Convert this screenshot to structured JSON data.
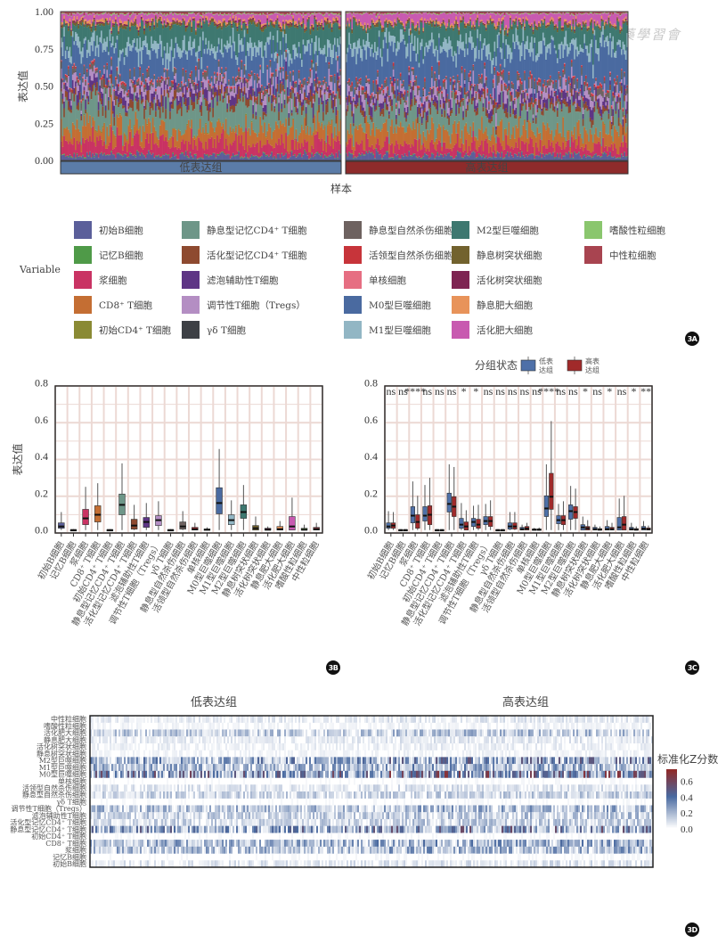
{
  "watermark": "川藥學習會",
  "badges": {
    "a": "3A",
    "b": "3B",
    "c": "3C",
    "d": "3D"
  },
  "cell_types": [
    {
      "name": "初始B细胞",
      "color": "#5b5f9a"
    },
    {
      "name": "记忆B细胞",
      "color": "#4f9a48"
    },
    {
      "name": "浆细胞",
      "color": "#c93363"
    },
    {
      "name": "CD8⁺ T细胞",
      "color": "#c46e33"
    },
    {
      "name": "初始CD4⁺ T细胞",
      "color": "#8a8a34"
    },
    {
      "name": "静息型记忆CD4⁺ T细胞",
      "color": "#6e9688"
    },
    {
      "name": "活化型记忆CD4⁺ T细胞",
      "color": "#8e4a30"
    },
    {
      "name": "滤泡辅助性T细胞",
      "color": "#5e3585"
    },
    {
      "name": "调节性T细胞（Tregs）",
      "color": "#b48ec3"
    },
    {
      "name": "γδ T细胞",
      "color": "#3d4045"
    },
    {
      "name": "静息型自然杀伤细胞",
      "color": "#6e6260"
    },
    {
      "name": "活领型自然杀伤细胞",
      "color": "#c7343a"
    },
    {
      "name": "单核细胞",
      "color": "#e66e82"
    },
    {
      "name": "M0型巨噬细胞",
      "color": "#4a6aa0"
    },
    {
      "name": "M1型巨噬细胞",
      "color": "#92b6c4"
    },
    {
      "name": "M2型巨噬细胞",
      "color": "#3e7870"
    },
    {
      "name": "静息树突状细胞",
      "color": "#72622e"
    },
    {
      "name": "活化树突状细胞",
      "color": "#7e2452"
    },
    {
      "name": "静息肥大细胞",
      "color": "#e8935a"
    },
    {
      "name": "活化肥大细胞",
      "color": "#c85ab0"
    },
    {
      "name": "嗜酸性粒细胞",
      "color": "#8ac66e"
    },
    {
      "name": "中性粒细胞",
      "color": "#a84450"
    }
  ],
  "chart_data": [
    {
      "id": "3A",
      "type": "bar",
      "subtype": "stacked-100",
      "title": "",
      "xlabel": "样本",
      "ylabel": "表达值",
      "ylim": [
        0,
        1
      ],
      "yticks": [
        "0.00",
        "0.25",
        "0.50",
        "0.75",
        "1.00"
      ],
      "groups": [
        {
          "name": "低表达组",
          "color": "#5b7ca8"
        },
        {
          "name": "高表达组",
          "color": "#8e2b2b"
        }
      ],
      "legend_title": "Variable",
      "legend_position": "bottom",
      "mean_composition": {
        "低表达组": [
          0.03,
          0.005,
          0.08,
          0.09,
          0.005,
          0.15,
          0.04,
          0.045,
          0.055,
          0.003,
          0.03,
          0.01,
          0.005,
          0.16,
          0.06,
          0.11,
          0.015,
          0.008,
          0.015,
          0.04,
          0.005,
          0.012
        ],
        "高表达组": [
          0.03,
          0.004,
          0.06,
          0.09,
          0.004,
          0.13,
          0.03,
          0.04,
          0.05,
          0.003,
          0.03,
          0.012,
          0.005,
          0.21,
          0.06,
          0.1,
          0.012,
          0.005,
          0.012,
          0.05,
          0.004,
          0.01
        ]
      }
    },
    {
      "id": "3B",
      "type": "box",
      "ylabel": "表达值",
      "ylim": [
        0,
        0.8
      ],
      "yticks": [
        "0.0",
        "0.2",
        "0.4",
        "0.6",
        "0.8"
      ],
      "boxes": [
        {
          "q1": 0.01,
          "median": 0.02,
          "q3": 0.04,
          "max": 0.1
        },
        {
          "q1": 0.0,
          "median": 0.0,
          "q3": 0.002,
          "max": 0.005
        },
        {
          "q1": 0.03,
          "median": 0.065,
          "q3": 0.115,
          "max": 0.24
        },
        {
          "q1": 0.045,
          "median": 0.085,
          "q3": 0.135,
          "max": 0.26
        },
        {
          "q1": 0.0,
          "median": 0.0,
          "q3": 0.002,
          "max": 0.005
        },
        {
          "q1": 0.085,
          "median": 0.14,
          "q3": 0.2,
          "max": 0.37
        },
        {
          "q1": 0.005,
          "median": 0.025,
          "q3": 0.06,
          "max": 0.14
        },
        {
          "q1": 0.015,
          "median": 0.045,
          "q3": 0.07,
          "max": 0.15
        },
        {
          "q1": 0.025,
          "median": 0.055,
          "q3": 0.08,
          "max": 0.16
        },
        {
          "q1": 0.0,
          "median": 0.0,
          "q3": 0.002,
          "max": 0.005
        },
        {
          "q1": 0.005,
          "median": 0.02,
          "q3": 0.045,
          "max": 0.105
        },
        {
          "q1": 0.0,
          "median": 0.005,
          "q3": 0.015,
          "max": 0.04
        },
        {
          "q1": 0.0,
          "median": 0.002,
          "q3": 0.006,
          "max": 0.015
        },
        {
          "q1": 0.09,
          "median": 0.15,
          "q3": 0.235,
          "max": 0.45
        },
        {
          "q1": 0.03,
          "median": 0.055,
          "q3": 0.085,
          "max": 0.165
        },
        {
          "q1": 0.065,
          "median": 0.1,
          "q3": 0.14,
          "max": 0.25
        },
        {
          "q1": 0.0,
          "median": 0.01,
          "q3": 0.025,
          "max": 0.075
        },
        {
          "q1": 0.0,
          "median": 0.002,
          "q3": 0.01,
          "max": 0.02
        },
        {
          "q1": 0.0,
          "median": 0.005,
          "q3": 0.02,
          "max": 0.05
        },
        {
          "q1": 0.0,
          "median": 0.02,
          "q3": 0.075,
          "max": 0.18
        },
        {
          "q1": 0.0,
          "median": 0.002,
          "q3": 0.01,
          "max": 0.03
        },
        {
          "q1": 0.0,
          "median": 0.005,
          "q3": 0.015,
          "max": 0.04
        }
      ]
    },
    {
      "id": "3C",
      "type": "box",
      "ylabel": "表达值",
      "ylim": [
        0,
        0.8
      ],
      "yticks": [
        "0.0",
        "0.2",
        "0.4",
        "0.6",
        "0.8"
      ],
      "legend_title": "分组状态",
      "legend_position": "top",
      "series": [
        {
          "name": "低表达组",
          "color": "#4e70a8"
        },
        {
          "name": "高表达组",
          "color": "#a12a2a"
        }
      ],
      "significance": [
        "ns",
        "ns",
        "****",
        "ns",
        "ns",
        "ns",
        "*",
        "*",
        "ns",
        "ns",
        "ns",
        "ns",
        "ns",
        "****",
        "ns",
        "ns",
        "*",
        "ns",
        "*",
        "ns",
        "*",
        "**"
      ],
      "boxes": [
        [
          {
            "q1": 0.01,
            "median": 0.02,
            "q3": 0.04,
            "max": 0.105
          },
          {
            "q1": 0.01,
            "median": 0.025,
            "q3": 0.04,
            "max": 0.1
          }
        ],
        [
          {
            "q1": 0.0,
            "median": 0.0,
            "q3": 0.002,
            "max": 0.004
          },
          {
            "q1": 0.0,
            "median": 0.0,
            "q3": 0.002,
            "max": 0.004
          }
        ],
        [
          {
            "q1": 0.04,
            "median": 0.08,
            "q3": 0.13,
            "max": 0.27
          },
          {
            "q1": 0.01,
            "median": 0.045,
            "q3": 0.085,
            "max": 0.19
          }
        ],
        [
          {
            "q1": 0.05,
            "median": 0.08,
            "q3": 0.13,
            "max": 0.25
          },
          {
            "q1": 0.03,
            "median": 0.085,
            "q3": 0.135,
            "max": 0.29
          }
        ],
        [
          {
            "q1": 0.0,
            "median": 0.0,
            "q3": 0.002,
            "max": 0.004
          },
          {
            "q1": 0.0,
            "median": 0.0,
            "q3": 0.002,
            "max": 0.004
          }
        ],
        [
          {
            "q1": 0.1,
            "median": 0.145,
            "q3": 0.205,
            "max": 0.365
          },
          {
            "q1": 0.075,
            "median": 0.13,
            "q3": 0.185,
            "max": 0.35
          }
        ],
        [
          {
            "q1": 0.01,
            "median": 0.03,
            "q3": 0.065,
            "max": 0.15
          },
          {
            "q1": 0.0,
            "median": 0.02,
            "q3": 0.045,
            "max": 0.11
          }
        ],
        [
          {
            "q1": 0.02,
            "median": 0.045,
            "q3": 0.065,
            "max": 0.135
          },
          {
            "q1": 0.01,
            "median": 0.03,
            "q3": 0.06,
            "max": 0.14
          }
        ],
        [
          {
            "q1": 0.03,
            "median": 0.05,
            "q3": 0.075,
            "max": 0.145
          },
          {
            "q1": 0.02,
            "median": 0.05,
            "q3": 0.075,
            "max": 0.165
          }
        ],
        [
          {
            "q1": 0.0,
            "median": 0.0,
            "q3": 0.002,
            "max": 0.004
          },
          {
            "q1": 0.0,
            "median": 0.0,
            "q3": 0.002,
            "max": 0.004
          }
        ],
        [
          {
            "q1": 0.005,
            "median": 0.02,
            "q3": 0.04,
            "max": 0.1
          },
          {
            "q1": 0.005,
            "median": 0.02,
            "q3": 0.04,
            "max": 0.1
          }
        ],
        [
          {
            "q1": 0.0,
            "median": 0.005,
            "q3": 0.015,
            "max": 0.03
          },
          {
            "q1": 0.0,
            "median": 0.008,
            "q3": 0.02,
            "max": 0.04
          }
        ],
        [
          {
            "q1": 0.0,
            "median": 0.002,
            "q3": 0.006,
            "max": 0.012
          },
          {
            "q1": 0.0,
            "median": 0.002,
            "q3": 0.006,
            "max": 0.014
          }
        ],
        [
          {
            "q1": 0.075,
            "median": 0.12,
            "q3": 0.19,
            "max": 0.365
          },
          {
            "q1": 0.115,
            "median": 0.185,
            "q3": 0.315,
            "max": 0.605
          }
        ],
        [
          {
            "q1": 0.035,
            "median": 0.055,
            "q3": 0.08,
            "max": 0.145
          },
          {
            "q1": 0.03,
            "median": 0.055,
            "q3": 0.08,
            "max": 0.16
          }
        ],
        [
          {
            "q1": 0.06,
            "median": 0.105,
            "q3": 0.14,
            "max": 0.245
          },
          {
            "q1": 0.065,
            "median": 0.1,
            "q3": 0.13,
            "max": 0.23
          }
        ],
        [
          {
            "q1": 0.0,
            "median": 0.015,
            "q3": 0.03,
            "max": 0.075
          },
          {
            "q1": 0.0,
            "median": 0.01,
            "q3": 0.02,
            "max": 0.055
          }
        ],
        [
          {
            "q1": 0.0,
            "median": 0.005,
            "q3": 0.015,
            "max": 0.03
          },
          {
            "q1": 0.0,
            "median": 0.002,
            "q3": 0.008,
            "max": 0.02
          }
        ],
        [
          {
            "q1": 0.0,
            "median": 0.005,
            "q3": 0.02,
            "max": 0.055
          },
          {
            "q1": 0.0,
            "median": 0.005,
            "q3": 0.015,
            "max": 0.04
          }
        ],
        [
          {
            "q1": 0.0,
            "median": 0.015,
            "q3": 0.07,
            "max": 0.175
          },
          {
            "q1": 0.0,
            "median": 0.03,
            "q3": 0.075,
            "max": 0.19
          }
        ],
        [
          {
            "q1": 0.0,
            "median": 0.005,
            "q3": 0.015,
            "max": 0.04
          },
          {
            "q1": 0.0,
            "median": 0.002,
            "q3": 0.008,
            "max": 0.02
          }
        ],
        [
          {
            "q1": 0.0,
            "median": 0.008,
            "q3": 0.02,
            "max": 0.05
          },
          {
            "q1": 0.0,
            "median": 0.004,
            "q3": 0.012,
            "max": 0.025
          }
        ]
      ]
    },
    {
      "id": "3D",
      "type": "heatmap",
      "groups": [
        "低表达组",
        "高表达组"
      ],
      "rows_top_to_bottom": [
        "中性粒细胞",
        "嗜酸性粒细胞",
        "活化肥大细胞",
        "静息肥大细胞",
        "活化树突状细胞",
        "静息树突状细胞",
        "M2型巨噬细胞",
        "M1型巨噬细胞",
        "M0型巨噬细胞",
        "单核细胞",
        "活领型自然杀伤细胞",
        "静息型自然杀伤细胞",
        "γδ T细胞",
        "调节性T细胞（Tregs）",
        "滤泡辅助性T细胞",
        "活化型记忆CD4⁺ T细胞",
        "静息型记忆CD4⁺ T细胞",
        "初始CD4⁺ T细胞",
        "CD8⁺ T细胞",
        "浆细胞",
        "记忆B细胞",
        "初始B细胞"
      ],
      "row_intensity": [
        0.04,
        0.02,
        0.1,
        0.04,
        0.03,
        0.02,
        0.18,
        0.14,
        0.24,
        0.01,
        0.05,
        0.08,
        0.01,
        0.12,
        0.09,
        0.08,
        0.2,
        0.01,
        0.14,
        0.13,
        0.01,
        0.05
      ],
      "colorbar_title": "标准化Z分数",
      "colorbar_ticks": [
        "0.0",
        "0.2",
        "0.4",
        "0.6"
      ],
      "colorbar_range": [
        0,
        0.75
      ],
      "colorbar_colors": [
        "#ffffff",
        "#4a6aa0",
        "#8e2b2b"
      ]
    }
  ]
}
